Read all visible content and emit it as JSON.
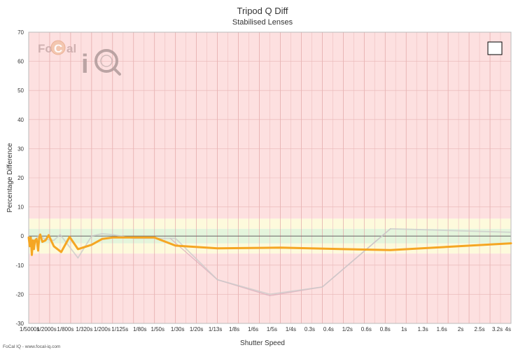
{
  "chart_data": {
    "type": "line",
    "title": "Tripod Q Diff",
    "subtitle": "Stabilised Lenses",
    "xlabel": "Shutter Speed",
    "ylabel": "Percentage Difference",
    "ylim": [
      -30,
      70
    ],
    "yticks": [
      70,
      60,
      50,
      40,
      30,
      20,
      10,
      0,
      -10,
      -20,
      -30
    ],
    "xticks": [
      "1/5000s",
      "1/2000s",
      "1/800s",
      "1/320s",
      "1/200s",
      "1/125s",
      "1/80s",
      "1/50s",
      "1/30s",
      "1/20s",
      "1/13s",
      "1/8s",
      "1/6s",
      "1/5s",
      "1/4s",
      "0.3s",
      "0.4s",
      "1/2s",
      "0.6s",
      "0.8s",
      "1s",
      "1.3s",
      "1.6s",
      "2s",
      "2.5s",
      "3.2s",
      "4s"
    ],
    "bands": [
      {
        "from": -30,
        "to": -6,
        "color": "#fde0e0"
      },
      {
        "from": -6,
        "to": -2.5,
        "color": "#fdfadc"
      },
      {
        "from": -2.5,
        "to": 2.5,
        "color": "#e4f5dc"
      },
      {
        "from": 2.5,
        "to": 6,
        "color": "#fdfadc"
      },
      {
        "from": 6,
        "to": 70,
        "color": "#fde0e0"
      }
    ],
    "series": [
      {
        "color": "#f5a623",
        "width": 3,
        "points": [
          [
            0.0,
            -0.5
          ],
          [
            0.1,
            -3.5
          ],
          [
            0.2,
            -0.5
          ],
          [
            0.3,
            -6.5
          ],
          [
            0.4,
            -1.5
          ],
          [
            0.5,
            -4.5
          ],
          [
            0.6,
            -1.5
          ],
          [
            0.75,
            -1.0
          ],
          [
            0.9,
            -5.0
          ],
          [
            1.0,
            -0.5
          ],
          [
            1.1,
            0.5
          ],
          [
            1.3,
            -2.0
          ],
          [
            1.6,
            -1.5
          ],
          [
            1.9,
            0.3
          ],
          [
            2.4,
            -3.5
          ],
          [
            3.1,
            -5.5
          ],
          [
            3.9,
            -0.3
          ],
          [
            4.7,
            -4.5
          ],
          [
            6.0,
            -3.0
          ],
          [
            7.0,
            -1.0
          ],
          [
            8.0,
            -0.5
          ],
          [
            10.0,
            -0.5
          ],
          [
            12.0,
            -0.5
          ],
          [
            14.0,
            -3.3
          ],
          [
            18.0,
            -4.2
          ],
          [
            24.0,
            -4.0
          ],
          [
            30.0,
            -4.5
          ],
          [
            34.5,
            -4.8
          ],
          [
            41.0,
            -3.5
          ],
          [
            46.0,
            -2.5
          ]
        ]
      },
      {
        "color": "#c9c9c9",
        "width": 1.8,
        "points": [
          [
            0.5,
            -2.0
          ],
          [
            1.0,
            0.5
          ],
          [
            1.5,
            -1.0
          ],
          [
            2.4,
            -1.5
          ],
          [
            3.0,
            0.5
          ],
          [
            4.7,
            -7.5
          ],
          [
            6.0,
            0.0
          ],
          [
            7.0,
            0.8
          ],
          [
            8.0,
            0.5
          ],
          [
            10.0,
            -0.8
          ],
          [
            12.0,
            -0.8
          ],
          [
            14.0,
            -0.8
          ],
          [
            18.0,
            -15.0
          ],
          [
            23.0,
            -20.0
          ],
          [
            28.0,
            -17.5
          ],
          [
            34.5,
            2.5
          ],
          [
            46.0,
            1.3
          ]
        ]
      },
      {
        "color": "#d9aab8",
        "width": 1.3,
        "points": [
          [
            13.5,
            -0.8
          ],
          [
            18.0,
            -15.0
          ],
          [
            23.0,
            -20.5
          ],
          [
            28.0,
            -17.5
          ],
          [
            34.5,
            2.5
          ]
        ]
      }
    ]
  },
  "watermark": {
    "brand_left": "Fo",
    "brand_mid": "C",
    "brand_right": "al",
    "brand_i": "i"
  },
  "footer": {
    "text": "FoCal IQ - www.focal-iq.com"
  },
  "legend_box": {
    "checked": false
  }
}
